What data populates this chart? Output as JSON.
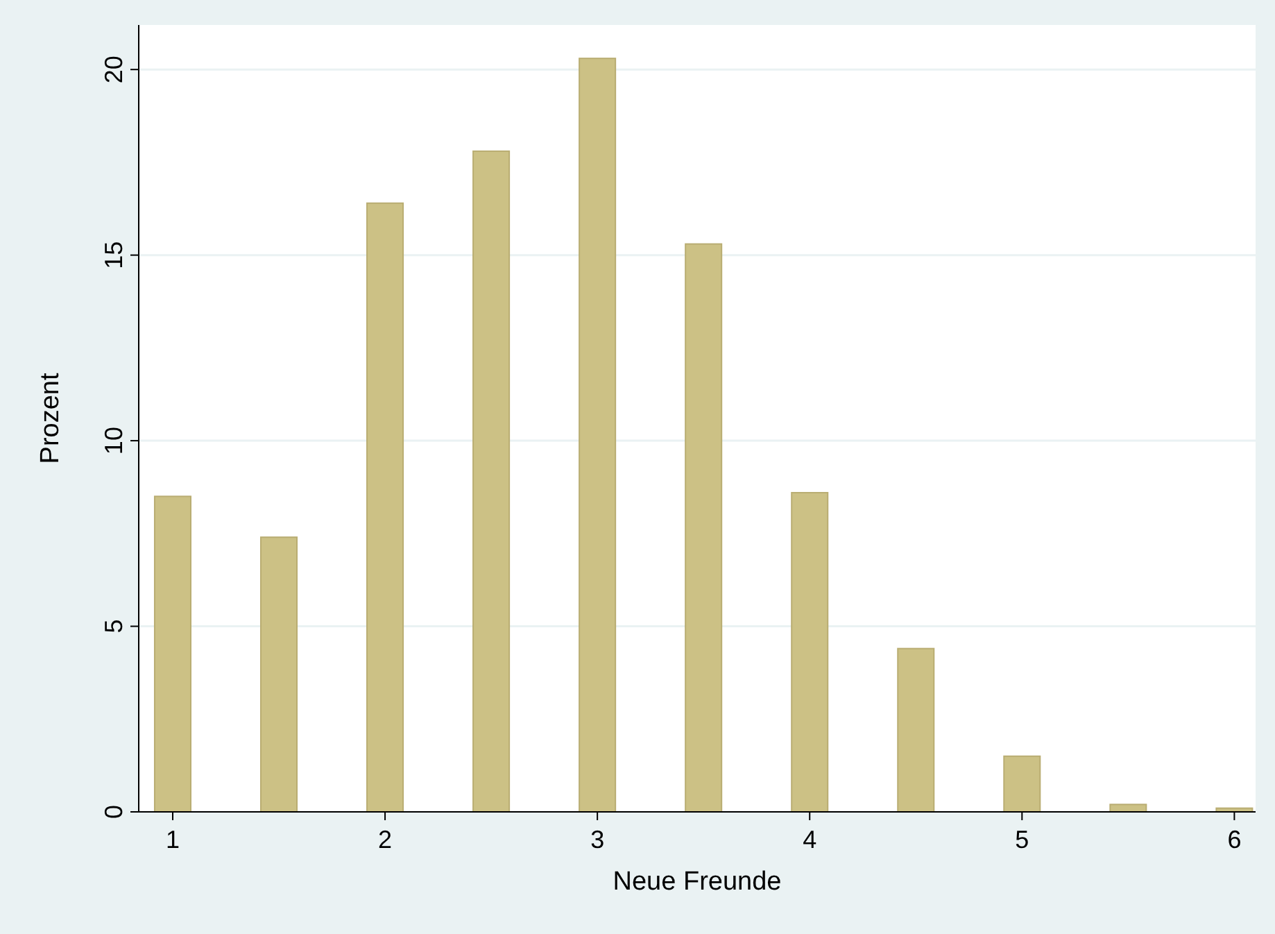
{
  "chart_data": {
    "type": "bar",
    "xlabel": "Neue Freunde",
    "ylabel": "Prozent",
    "x": [
      1,
      1.5,
      2,
      2.5,
      3,
      3.5,
      4,
      4.5,
      5,
      5.5,
      6
    ],
    "values": [
      8.5,
      7.4,
      16.4,
      17.8,
      20.3,
      15.3,
      8.6,
      4.4,
      1.5,
      0.2,
      0.1
    ],
    "color": "#ccc185",
    "xlim": [
      0.84,
      6.1
    ],
    "xticks": [
      1,
      2,
      3,
      4,
      5,
      6
    ],
    "ylim": [
      0,
      21.2
    ],
    "yticks": [
      0,
      5,
      10,
      15,
      20
    ],
    "grid": "y"
  }
}
